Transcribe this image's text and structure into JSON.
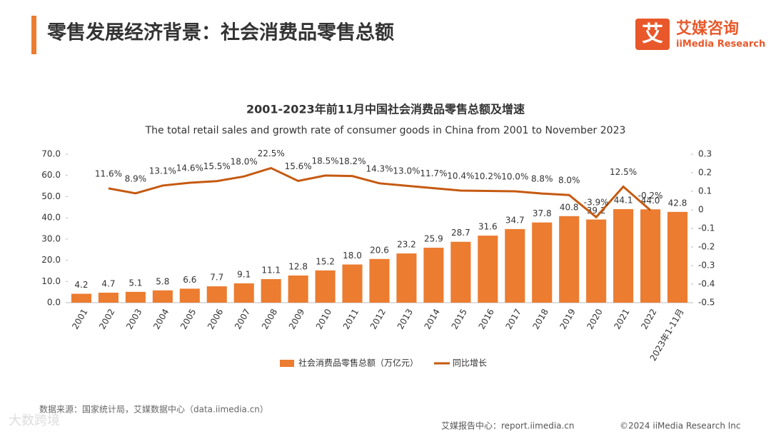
{
  "header": {
    "title": "零售发展经济背景：社会消费品零售总额",
    "logo_mark": "艾",
    "logo_name": "艾媒咨询",
    "logo_sub": "iiMedia Research"
  },
  "chart_data": {
    "type": "bar",
    "title": "2001-2023年前11月中国社会消费品零售总额及增速",
    "subtitle": "The total retail sales and growth rate of consumer goods in China from 2001 to November 2023",
    "categories": [
      "2001",
      "2002",
      "2003",
      "2004",
      "2005",
      "2006",
      "2007",
      "2008",
      "2009",
      "2010",
      "2011",
      "2012",
      "2013",
      "2014",
      "2015",
      "2016",
      "2017",
      "2018",
      "2019",
      "2020",
      "2021",
      "2022",
      "2023年1-11月"
    ],
    "series": [
      {
        "name": "社会消费品零售总额（万亿元）",
        "type": "bar",
        "color": "#ec7c30",
        "values": [
          4.2,
          4.7,
          5.1,
          5.8,
          6.6,
          7.7,
          9.1,
          11.1,
          12.8,
          15.2,
          18.0,
          20.6,
          23.2,
          25.9,
          28.7,
          31.6,
          34.7,
          37.8,
          40.8,
          39.2,
          44.1,
          44.0,
          42.8
        ],
        "value_labels": [
          "4.2",
          "4.7",
          "5.1",
          "5.8",
          "6.6",
          "7.7",
          "9.1",
          "11.1",
          "12.8",
          "15.2",
          "18.0",
          "20.6",
          "23.2",
          "25.9",
          "28.7",
          "31.6",
          "34.7",
          "37.8",
          "40.8",
          "39.2",
          "44.1",
          "44.0",
          "42.8"
        ]
      },
      {
        "name": "同比增长",
        "type": "line",
        "axis": "y2",
        "color": "#c55a11",
        "values": [
          null,
          0.116,
          0.089,
          0.131,
          0.146,
          0.155,
          0.18,
          0.225,
          0.156,
          0.185,
          0.182,
          0.143,
          0.13,
          0.117,
          0.104,
          0.102,
          0.1,
          0.088,
          0.08,
          -0.039,
          0.125,
          -0.002,
          null
        ],
        "value_labels": [
          null,
          "11.6%",
          "8.9%",
          "13.1%",
          "14.6%",
          "15.5%",
          "18.0%",
          "22.5%",
          "15.6%",
          "18.5%",
          "18.2%",
          "14.3%",
          "13.0%",
          "11.7%",
          "10.4%",
          "10.2%",
          "10.0%",
          "8.8%",
          "8.0%",
          "-3.9%",
          "12.5%",
          "-0.2%",
          null
        ]
      }
    ],
    "ylim": [
      0,
      70
    ],
    "yticks": [
      {
        "value": 0,
        "label": "0.0"
      },
      {
        "value": 10,
        "label": "10.0"
      },
      {
        "value": 20,
        "label": "20.0"
      },
      {
        "value": 30,
        "label": "30.0"
      },
      {
        "value": 40,
        "label": "40.0"
      },
      {
        "value": 50,
        "label": "50.0"
      },
      {
        "value": 60,
        "label": "60.0"
      },
      {
        "value": 70,
        "label": "70.0"
      }
    ],
    "y2lim": [
      -0.5,
      0.3
    ],
    "y2ticks": [
      -0.5,
      -0.4,
      -0.3,
      -0.2,
      -0.1,
      0,
      0.1,
      0.2,
      0.3
    ]
  },
  "footer": {
    "source": "数据来源：国家统计局，艾媒数据中心（data.iimedia.cn）",
    "report": "艾媒报告中心：report.iimedia.cn",
    "copyright": "©2024  iiMedia Research  Inc",
    "watermark": "大数跨境"
  }
}
